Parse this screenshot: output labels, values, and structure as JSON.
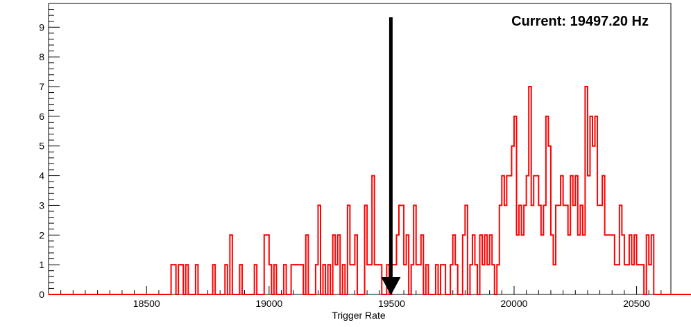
{
  "chart_data": {
    "type": "histogram",
    "xlabel": "Trigger Rate",
    "ylabel": "",
    "title": "",
    "annotation": "Current: 19497.20 Hz",
    "marker_x": 19497.2,
    "xlim": [
      18100,
      20640
    ],
    "ylim": [
      0,
      9.8
    ],
    "x_ticks": [
      18500,
      19000,
      19500,
      20000,
      20500
    ],
    "y_ticks": [
      0,
      1,
      2,
      3,
      4,
      5,
      6,
      7,
      8,
      9
    ],
    "grid": false,
    "line_color": "#ff0000",
    "marker_color": "#000000",
    "bin_width": 10,
    "bin_start": 18100,
    "counts": [
      0,
      0,
      0,
      0,
      0,
      0,
      0,
      0,
      0,
      0,
      0,
      0,
      0,
      0,
      0,
      0,
      0,
      0,
      0,
      0,
      0,
      0,
      0,
      0,
      0,
      0,
      0,
      0,
      0,
      0,
      0,
      0,
      0,
      0,
      0,
      0,
      0,
      0,
      0,
      0,
      0,
      0,
      0,
      0,
      0,
      0,
      0,
      0,
      0,
      0,
      1,
      1,
      0,
      1,
      1,
      0,
      1,
      0,
      0,
      0,
      1,
      0,
      0,
      0,
      0,
      0,
      0,
      1,
      0,
      0,
      0,
      0,
      1,
      0,
      2,
      0,
      0,
      0,
      1,
      0,
      0,
      0,
      0,
      0,
      1,
      0,
      0,
      0,
      2,
      2,
      1,
      0,
      1,
      0,
      0,
      0,
      1,
      0,
      0,
      1,
      1,
      1,
      1,
      1,
      0,
      2,
      0,
      0,
      0,
      1,
      3,
      0,
      1,
      0,
      1,
      0,
      2,
      1,
      2,
      0,
      1,
      0,
      3,
      1,
      1,
      2,
      0,
      0,
      0,
      3,
      1,
      1,
      4,
      1,
      1,
      1,
      0,
      0,
      1,
      0,
      1,
      1,
      2,
      3,
      3,
      1,
      2,
      0,
      1,
      3,
      1,
      1,
      2,
      0,
      1,
      0,
      0,
      0,
      1,
      0,
      1,
      1,
      0,
      0,
      1,
      2,
      1,
      0,
      0,
      2,
      3,
      0,
      1,
      2,
      1,
      0,
      2,
      1,
      2,
      1,
      2,
      1,
      0,
      1,
      3,
      4,
      3,
      4,
      4,
      5,
      6,
      2,
      3,
      2,
      3,
      4,
      7,
      3,
      4,
      4,
      3,
      2,
      3,
      6,
      5,
      2,
      1,
      3,
      3,
      4,
      3,
      3,
      2,
      4,
      3,
      4,
      2,
      3,
      2,
      7,
      4,
      6,
      5,
      6,
      3,
      3,
      4,
      2,
      2,
      2,
      2,
      1,
      1,
      3,
      2,
      1,
      1,
      2,
      1,
      2,
      1,
      1,
      1,
      0,
      2,
      1,
      2,
      0,
      0,
      0,
      0,
      0,
      0,
      0,
      0,
      0,
      0,
      0,
      0,
      0,
      0,
      0,
      0,
      0,
      0,
      0,
      0,
      0,
      0,
      0,
      0,
      0,
      0,
      0,
      0,
      0,
      0,
      0,
      0,
      0,
      0,
      0,
      0,
      0,
      0,
      0,
      0,
      0,
      0,
      0,
      0,
      0,
      0,
      0,
      0,
      0,
      0,
      0,
      0,
      0
    ]
  }
}
